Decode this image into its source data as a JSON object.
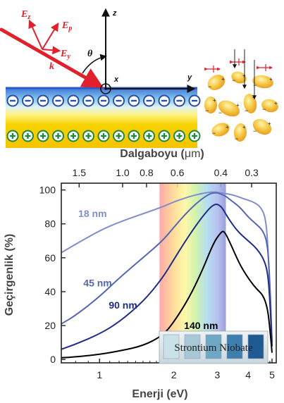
{
  "schematic": {
    "vectors": {
      "ez": "E",
      "ez_sub": "z",
      "ep": "E",
      "ep_sub": "p",
      "ey": "E",
      "ey_sub": "y",
      "k": "k",
      "theta": "θ"
    },
    "axes": {
      "z": "z",
      "y": "y",
      "x": "x"
    },
    "charges": {
      "minus": "−",
      "plus": "+"
    }
  },
  "inset": {
    "label": "Strontium Niobate"
  },
  "colors": {
    "series_18": "#7f8fc8",
    "series_45": "#5566b0",
    "series_90": "#1f2c86",
    "series_140": "#000000",
    "laser_red": "#e0202a",
    "film_top": "#4a7cd9",
    "film_yellow": "#f5cf00",
    "plus_green": "#1f8a3a"
  },
  "chart_data": {
    "type": "line",
    "xlabel": "Enerji (eV)",
    "ylabel": "Geçirgenlik (%)",
    "x_scale": "log",
    "xlim": [
      0.7,
      5.2
    ],
    "ylim": [
      -2,
      104
    ],
    "x_ticks": [
      1,
      2,
      3,
      4,
      5
    ],
    "y_ticks": [
      0,
      20,
      40,
      60,
      80,
      100
    ],
    "top_axis": {
      "label_prefix": "Dalgaboyu (",
      "label_unit": "μm",
      "label_suffix": ")",
      "ticks_um": [
        1.5,
        1.0,
        0.8,
        0.6,
        0.4,
        0.3
      ],
      "tick_labels": [
        "1.5",
        "1.0",
        "0.8",
        "0.6",
        "0.4",
        "0.3"
      ]
    },
    "visible_band_ev": [
      1.75,
      3.25
    ],
    "series": [
      {
        "name": "18 nm",
        "x": [
          0.7,
          0.8,
          1.0,
          1.2,
          1.5,
          1.8,
          2.0,
          2.3,
          2.6,
          2.9,
          3.2,
          3.5,
          3.8,
          4.2,
          4.5,
          4.7,
          4.8,
          4.9,
          5.0
        ],
        "y": [
          63,
          68,
          76,
          81,
          86,
          90,
          93,
          96,
          98,
          99,
          98,
          97,
          95,
          93,
          90,
          84,
          70,
          40,
          10
        ]
      },
      {
        "name": "45 nm",
        "x": [
          0.7,
          0.8,
          1.0,
          1.2,
          1.5,
          1.8,
          2.0,
          2.3,
          2.6,
          2.9,
          3.2,
          3.4,
          3.7,
          4.0,
          4.3,
          4.6,
          4.8,
          4.9,
          5.0
        ],
        "y": [
          21,
          26,
          37,
          48,
          60,
          70,
          78,
          88,
          95,
          99,
          97,
          94,
          90,
          84,
          80,
          76,
          68,
          45,
          10
        ]
      },
      {
        "name": "90 nm",
        "x": [
          0.7,
          0.8,
          1.0,
          1.2,
          1.5,
          1.8,
          2.0,
          2.3,
          2.6,
          2.9,
          3.1,
          3.3,
          3.6,
          4.0,
          4.3,
          4.6,
          4.8,
          4.9,
          5.0
        ],
        "y": [
          6,
          9,
          15,
          22,
          34,
          48,
          59,
          73,
          84,
          92,
          91,
          84,
          76,
          70,
          66,
          60,
          52,
          35,
          8
        ]
      },
      {
        "name": "140 nm",
        "x": [
          0.7,
          0.8,
          1.0,
          1.2,
          1.5,
          1.8,
          2.0,
          2.3,
          2.6,
          2.9,
          3.1,
          3.2,
          3.4,
          3.7,
          4.0,
          4.3,
          4.6,
          4.8,
          4.9,
          5.0
        ],
        "y": [
          1,
          1.5,
          3,
          5,
          8,
          14,
          22,
          36,
          52,
          69,
          75,
          76,
          68,
          56,
          48,
          42,
          38,
          30,
          18,
          4
        ]
      }
    ]
  }
}
